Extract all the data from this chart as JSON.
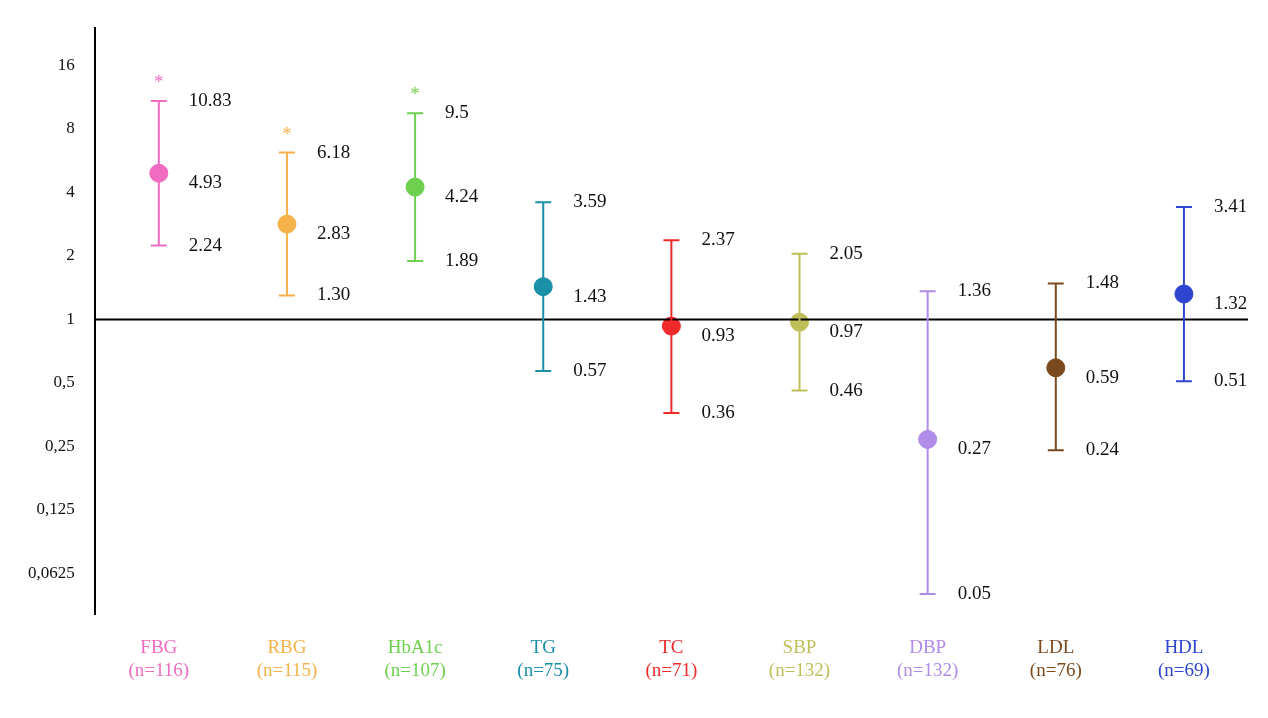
{
  "chart_data": {
    "type": "scatter",
    "log": true,
    "grid": false,
    "legend": false,
    "marker": "circle",
    "categories": [
      "FBG\n(n=116)",
      "RBG\n(n=115)",
      "HbA1c\n(n=107)",
      "TG\n(n=75)",
      "TC\n(n=71)",
      "SBP\n(n=132)",
      "DBP\n(n=132)",
      "LDL\n(n=76)",
      "HDL\n(n=69)"
    ],
    "values": [
      4.93,
      2.83,
      4.24,
      1.43,
      0.93,
      0.97,
      0.27,
      0.59,
      1.32
    ],
    "value_labels": [
      "4.93",
      "2.83",
      "4.24",
      "1.43",
      "0.93",
      "0.97",
      "0.27",
      "0.59",
      "1.32"
    ],
    "errors": [
      [
        2.24,
        10.83
      ],
      [
        1.3,
        6.18
      ],
      [
        1.89,
        9.5
      ],
      [
        0.57,
        3.59
      ],
      [
        0.36,
        2.37
      ],
      [
        0.46,
        2.05
      ],
      [
        0.05,
        1.36
      ],
      [
        0.24,
        1.48
      ],
      [
        0.51,
        3.41
      ]
    ],
    "colors": [
      "#f06cc0",
      "#f5b24a",
      "#6fcf4f",
      "#1a8fa8",
      "#f02a2a",
      "#bfbf5a",
      "#b08ce8",
      "#7a4a1e",
      "#2f45d0"
    ],
    "ylim": [
      0.04,
      24
    ],
    "yticks": [
      {
        "value": 0.0625,
        "label": "0,0625"
      },
      {
        "value": 0.125,
        "label": "0,125"
      },
      {
        "value": 0.25,
        "label": "0,25"
      },
      {
        "value": 0.5,
        "label": "0,5"
      },
      1,
      2,
      4,
      8,
      16
    ],
    "ref_lines": [
      {
        "axis": "y",
        "value": 1,
        "color": "#000000"
      }
    ],
    "annotations": [
      {
        "text": "10.83",
        "x": "FBG\n(n=116)",
        "y": 10.83
      },
      {
        "text": "2.24",
        "x": "FBG\n(n=116)",
        "y": 2.24
      },
      {
        "text": "6.18",
        "x": "RBG\n(n=115)",
        "y": 6.18
      },
      {
        "text": "1.30",
        "x": "RBG\n(n=115)",
        "y": 1.3
      },
      {
        "text": "9.5",
        "x": "HbA1c\n(n=107)",
        "y": 9.5
      },
      {
        "text": "1.89",
        "x": "HbA1c\n(n=107)",
        "y": 1.89
      },
      {
        "text": "3.59",
        "x": "TG\n(n=75)",
        "y": 3.59
      },
      {
        "text": "0.57",
        "x": "TG\n(n=75)",
        "y": 0.57
      },
      {
        "text": "2.37",
        "x": "TC\n(n=71)",
        "y": 2.37
      },
      {
        "text": "0.36",
        "x": "TC\n(n=71)",
        "y": 0.36
      },
      {
        "text": "2.05",
        "x": "SBP\n(n=132)",
        "y": 2.05
      },
      {
        "text": "0.46",
        "x": "SBP\n(n=132)",
        "y": 0.46
      },
      {
        "text": "1.36",
        "x": "DBP\n(n=132)",
        "y": 1.36
      },
      {
        "text": "0.05",
        "x": "DBP\n(n=132)",
        "y": 0.05
      },
      {
        "text": "1.48",
        "x": "LDL\n(n=76)",
        "y": 1.48
      },
      {
        "text": "0.24",
        "x": "LDL\n(n=76)",
        "y": 0.24
      },
      {
        "text": "3.41",
        "x": "HDL\n(n=69)",
        "y": 3.41
      },
      {
        "text": "0.51",
        "x": "HDL\n(n=69)",
        "y": 0.51
      },
      {
        "text": "*",
        "x": "FBG\n(n=116)",
        "y": 10.83
      },
      {
        "text": "*",
        "x": "RBG\n(n=115)",
        "y": 6.18
      },
      {
        "text": "*",
        "x": "HbA1c\n(n=107)",
        "y": 9.5
      }
    ]
  }
}
